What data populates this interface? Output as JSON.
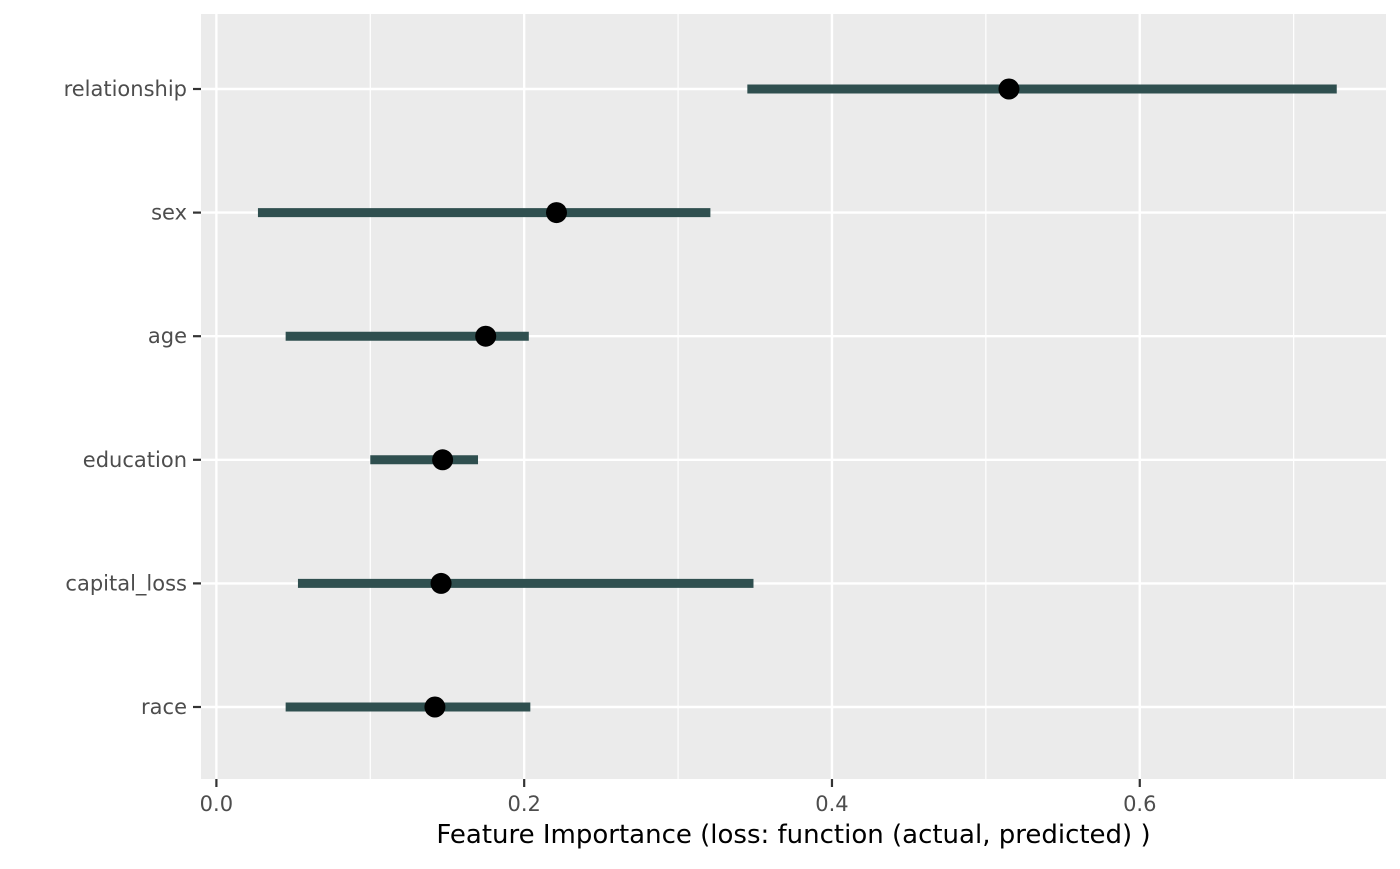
{
  "chart_data": {
    "type": "dot-interval",
    "xlabel": "Feature Importance (loss: function (actual, predicted) )",
    "ylabel": "",
    "xlim": [
      -0.01,
      0.76
    ],
    "x_ticks": [
      0.0,
      0.2,
      0.4,
      0.6
    ],
    "x_tick_labels": [
      "0.0",
      "0.2",
      "0.4",
      "0.6"
    ],
    "grid": true,
    "features": [
      {
        "name": "relationship",
        "median": 0.515,
        "low": 0.345,
        "high": 0.728
      },
      {
        "name": "sex",
        "median": 0.221,
        "low": 0.027,
        "high": 0.321
      },
      {
        "name": "age",
        "median": 0.175,
        "low": 0.045,
        "high": 0.203
      },
      {
        "name": "education",
        "median": 0.147,
        "low": 0.1,
        "high": 0.17
      },
      {
        "name": "capital_loss",
        "median": 0.146,
        "low": 0.053,
        "high": 0.349
      },
      {
        "name": "race",
        "median": 0.142,
        "low": 0.045,
        "high": 0.204
      }
    ],
    "colors": {
      "panel_bg": "#ebebeb",
      "grid": "#ffffff",
      "interval": "#2f4f4f",
      "point": "#000000",
      "tick_text": "#4d4d4d",
      "title_text": "#000000"
    }
  }
}
